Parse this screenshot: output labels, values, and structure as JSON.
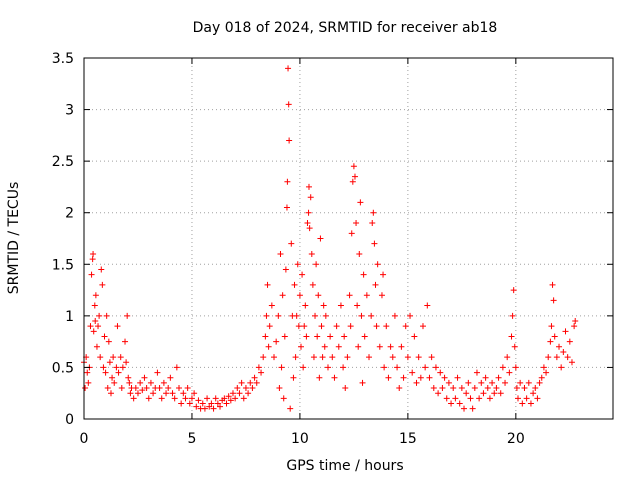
{
  "chart_data": {
    "type": "scatter",
    "title": "Day 018 of 2024, SRMTID for receiver ab18",
    "xlabel": "GPS time / hours",
    "ylabel": "SRMTID / TECUs",
    "xlim": [
      0,
      24.5
    ],
    "ylim": [
      0,
      3.5
    ],
    "xticks": [
      0,
      5,
      10,
      15,
      20
    ],
    "xtick_labels": [
      "0",
      "5",
      "10",
      "15",
      "20"
    ],
    "yticks": [
      0,
      0.5,
      1,
      1.5,
      2,
      2.5,
      3,
      3.5
    ],
    "ytick_labels": [
      "0",
      "0.5",
      "1",
      "1.5",
      "2",
      "2.5",
      "3",
      "3.5"
    ],
    "grid": true,
    "marker": "+",
    "color": "#ff0000",
    "series": [
      {
        "name": "SRMTID",
        "points": [
          [
            0.0,
            0.55
          ],
          [
            0.05,
            0.3
          ],
          [
            0.1,
            0.6
          ],
          [
            0.15,
            0.45
          ],
          [
            0.2,
            0.35
          ],
          [
            0.25,
            0.5
          ],
          [
            0.3,
            0.9
          ],
          [
            0.35,
            1.4
          ],
          [
            0.4,
            1.55
          ],
          [
            0.42,
            1.6
          ],
          [
            0.45,
            0.85
          ],
          [
            0.5,
            1.1
          ],
          [
            0.52,
            0.95
          ],
          [
            0.55,
            1.2
          ],
          [
            0.6,
            0.7
          ],
          [
            0.65,
            0.9
          ],
          [
            0.7,
            1.0
          ],
          [
            0.75,
            0.6
          ],
          [
            0.8,
            1.45
          ],
          [
            0.85,
            1.3
          ],
          [
            0.9,
            0.5
          ],
          [
            0.95,
            0.8
          ],
          [
            1.0,
            0.45
          ],
          [
            1.05,
            1.0
          ],
          [
            1.1,
            0.3
          ],
          [
            1.15,
            0.75
          ],
          [
            1.2,
            0.55
          ],
          [
            1.25,
            0.25
          ],
          [
            1.3,
            0.4
          ],
          [
            1.35,
            0.6
          ],
          [
            1.4,
            0.35
          ],
          [
            1.5,
            0.5
          ],
          [
            1.55,
            0.9
          ],
          [
            1.6,
            0.45
          ],
          [
            1.7,
            0.6
          ],
          [
            1.75,
            0.3
          ],
          [
            1.8,
            0.5
          ],
          [
            1.9,
            0.75
          ],
          [
            1.95,
            0.55
          ],
          [
            2.0,
            1.0
          ],
          [
            2.05,
            0.4
          ],
          [
            2.1,
            0.35
          ],
          [
            2.15,
            0.25
          ],
          [
            2.2,
            0.3
          ],
          [
            2.3,
            0.2
          ],
          [
            2.4,
            0.3
          ],
          [
            2.5,
            0.25
          ],
          [
            2.6,
            0.35
          ],
          [
            2.7,
            0.28
          ],
          [
            2.8,
            0.4
          ],
          [
            2.9,
            0.3
          ],
          [
            3.0,
            0.2
          ],
          [
            3.1,
            0.35
          ],
          [
            3.2,
            0.25
          ],
          [
            3.3,
            0.3
          ],
          [
            3.4,
            0.45
          ],
          [
            3.5,
            0.3
          ],
          [
            3.6,
            0.2
          ],
          [
            3.7,
            0.35
          ],
          [
            3.8,
            0.25
          ],
          [
            3.9,
            0.3
          ],
          [
            4.0,
            0.4
          ],
          [
            4.1,
            0.25
          ],
          [
            4.2,
            0.2
          ],
          [
            4.3,
            0.5
          ],
          [
            4.4,
            0.3
          ],
          [
            4.5,
            0.15
          ],
          [
            4.6,
            0.25
          ],
          [
            4.7,
            0.2
          ],
          [
            4.8,
            0.3
          ],
          [
            4.9,
            0.15
          ],
          [
            5.0,
            0.2
          ],
          [
            5.1,
            0.25
          ],
          [
            5.2,
            0.12
          ],
          [
            5.3,
            0.18
          ],
          [
            5.4,
            0.1
          ],
          [
            5.5,
            0.15
          ],
          [
            5.6,
            0.1
          ],
          [
            5.7,
            0.2
          ],
          [
            5.8,
            0.12
          ],
          [
            5.9,
            0.15
          ],
          [
            6.0,
            0.1
          ],
          [
            6.1,
            0.2
          ],
          [
            6.2,
            0.15
          ],
          [
            6.3,
            0.12
          ],
          [
            6.4,
            0.18
          ],
          [
            6.5,
            0.2
          ],
          [
            6.6,
            0.15
          ],
          [
            6.7,
            0.22
          ],
          [
            6.8,
            0.18
          ],
          [
            6.9,
            0.25
          ],
          [
            7.0,
            0.2
          ],
          [
            7.1,
            0.3
          ],
          [
            7.2,
            0.25
          ],
          [
            7.3,
            0.35
          ],
          [
            7.4,
            0.2
          ],
          [
            7.5,
            0.3
          ],
          [
            7.6,
            0.25
          ],
          [
            7.7,
            0.35
          ],
          [
            7.8,
            0.3
          ],
          [
            7.9,
            0.4
          ],
          [
            8.0,
            0.35
          ],
          [
            8.1,
            0.5
          ],
          [
            8.2,
            0.45
          ],
          [
            8.3,
            0.6
          ],
          [
            8.4,
            0.8
          ],
          [
            8.45,
            1.0
          ],
          [
            8.5,
            1.3
          ],
          [
            8.55,
            0.7
          ],
          [
            8.6,
            0.9
          ],
          [
            8.7,
            1.1
          ],
          [
            8.8,
            0.6
          ],
          [
            8.9,
            0.75
          ],
          [
            9.0,
            1.0
          ],
          [
            9.05,
            0.3
          ],
          [
            9.1,
            1.6
          ],
          [
            9.15,
            0.5
          ],
          [
            9.2,
            1.2
          ],
          [
            9.25,
            0.2
          ],
          [
            9.3,
            0.8
          ],
          [
            9.35,
            1.45
          ],
          [
            9.4,
            2.05
          ],
          [
            9.42,
            2.3
          ],
          [
            9.45,
            3.4
          ],
          [
            9.48,
            3.05
          ],
          [
            9.5,
            2.7
          ],
          [
            9.55,
            0.1
          ],
          [
            9.6,
            1.7
          ],
          [
            9.65,
            1.0
          ],
          [
            9.7,
            0.4
          ],
          [
            9.75,
            1.3
          ],
          [
            9.8,
            0.6
          ],
          [
            9.85,
            1.0
          ],
          [
            9.9,
            1.5
          ],
          [
            9.95,
            0.9
          ],
          [
            10.0,
            1.2
          ],
          [
            10.05,
            0.7
          ],
          [
            10.1,
            1.4
          ],
          [
            10.15,
            0.5
          ],
          [
            10.2,
            0.9
          ],
          [
            10.25,
            1.1
          ],
          [
            10.3,
            0.8
          ],
          [
            10.35,
            1.9
          ],
          [
            10.4,
            2.0
          ],
          [
            10.42,
            2.25
          ],
          [
            10.45,
            1.85
          ],
          [
            10.5,
            2.15
          ],
          [
            10.55,
            1.6
          ],
          [
            10.6,
            1.3
          ],
          [
            10.65,
            0.6
          ],
          [
            10.7,
            1.0
          ],
          [
            10.75,
            1.5
          ],
          [
            10.8,
            0.8
          ],
          [
            10.85,
            1.2
          ],
          [
            10.9,
            0.4
          ],
          [
            10.95,
            1.75
          ],
          [
            11.0,
            0.9
          ],
          [
            11.05,
            0.6
          ],
          [
            11.1,
            1.1
          ],
          [
            11.15,
            0.7
          ],
          [
            11.2,
            1.0
          ],
          [
            11.3,
            0.5
          ],
          [
            11.4,
            0.8
          ],
          [
            11.5,
            0.6
          ],
          [
            11.6,
            0.4
          ],
          [
            11.7,
            0.9
          ],
          [
            11.8,
            0.7
          ],
          [
            11.9,
            1.1
          ],
          [
            12.0,
            0.5
          ],
          [
            12.05,
            0.8
          ],
          [
            12.1,
            0.3
          ],
          [
            12.2,
            0.6
          ],
          [
            12.3,
            1.2
          ],
          [
            12.35,
            0.9
          ],
          [
            12.4,
            1.8
          ],
          [
            12.45,
            2.3
          ],
          [
            12.5,
            2.45
          ],
          [
            12.55,
            2.35
          ],
          [
            12.6,
            1.9
          ],
          [
            12.65,
            1.1
          ],
          [
            12.7,
            0.7
          ],
          [
            12.75,
            1.6
          ],
          [
            12.8,
            2.1
          ],
          [
            12.85,
            1.0
          ],
          [
            12.9,
            0.35
          ],
          [
            12.95,
            1.4
          ],
          [
            13.0,
            0.8
          ],
          [
            13.1,
            1.2
          ],
          [
            13.2,
            0.6
          ],
          [
            13.3,
            1.0
          ],
          [
            13.35,
            1.9
          ],
          [
            13.4,
            2.0
          ],
          [
            13.45,
            1.7
          ],
          [
            13.5,
            1.3
          ],
          [
            13.55,
            0.9
          ],
          [
            13.6,
            1.5
          ],
          [
            13.7,
            0.7
          ],
          [
            13.8,
            1.2
          ],
          [
            13.85,
            1.4
          ],
          [
            13.9,
            0.5
          ],
          [
            14.0,
            0.9
          ],
          [
            14.1,
            0.4
          ],
          [
            14.2,
            0.7
          ],
          [
            14.3,
            0.6
          ],
          [
            14.4,
            1.0
          ],
          [
            14.5,
            0.5
          ],
          [
            14.6,
            0.3
          ],
          [
            14.7,
            0.7
          ],
          [
            14.8,
            0.4
          ],
          [
            14.9,
            0.9
          ],
          [
            15.0,
            0.6
          ],
          [
            15.1,
            1.0
          ],
          [
            15.2,
            0.45
          ],
          [
            15.3,
            0.8
          ],
          [
            15.4,
            0.35
          ],
          [
            15.5,
            0.6
          ],
          [
            15.6,
            0.4
          ],
          [
            15.7,
            0.9
          ],
          [
            15.8,
            0.5
          ],
          [
            15.9,
            1.1
          ],
          [
            16.0,
            0.4
          ],
          [
            16.1,
            0.6
          ],
          [
            16.2,
            0.3
          ],
          [
            16.3,
            0.5
          ],
          [
            16.4,
            0.25
          ],
          [
            16.5,
            0.45
          ],
          [
            16.6,
            0.3
          ],
          [
            16.7,
            0.4
          ],
          [
            16.8,
            0.2
          ],
          [
            16.9,
            0.35
          ],
          [
            17.0,
            0.15
          ],
          [
            17.1,
            0.3
          ],
          [
            17.2,
            0.2
          ],
          [
            17.3,
            0.4
          ],
          [
            17.4,
            0.15
          ],
          [
            17.5,
            0.3
          ],
          [
            17.6,
            0.1
          ],
          [
            17.7,
            0.25
          ],
          [
            17.8,
            0.35
          ],
          [
            17.9,
            0.2
          ],
          [
            18.0,
            0.1
          ],
          [
            18.1,
            0.3
          ],
          [
            18.2,
            0.45
          ],
          [
            18.3,
            0.2
          ],
          [
            18.4,
            0.35
          ],
          [
            18.5,
            0.25
          ],
          [
            18.6,
            0.4
          ],
          [
            18.7,
            0.3
          ],
          [
            18.8,
            0.2
          ],
          [
            18.9,
            0.35
          ],
          [
            19.0,
            0.25
          ],
          [
            19.1,
            0.3
          ],
          [
            19.2,
            0.4
          ],
          [
            19.3,
            0.25
          ],
          [
            19.4,
            0.5
          ],
          [
            19.5,
            0.35
          ],
          [
            19.6,
            0.6
          ],
          [
            19.7,
            0.45
          ],
          [
            19.8,
            0.8
          ],
          [
            19.85,
            1.0
          ],
          [
            19.9,
            1.25
          ],
          [
            19.95,
            0.7
          ],
          [
            20.0,
            0.5
          ],
          [
            20.05,
            0.3
          ],
          [
            20.1,
            0.2
          ],
          [
            20.2,
            0.35
          ],
          [
            20.3,
            0.15
          ],
          [
            20.4,
            0.3
          ],
          [
            20.5,
            0.2
          ],
          [
            20.6,
            0.35
          ],
          [
            20.7,
            0.15
          ],
          [
            20.8,
            0.25
          ],
          [
            20.9,
            0.3
          ],
          [
            21.0,
            0.2
          ],
          [
            21.1,
            0.35
          ],
          [
            21.2,
            0.4
          ],
          [
            21.3,
            0.5
          ],
          [
            21.4,
            0.45
          ],
          [
            21.5,
            0.6
          ],
          [
            21.6,
            0.75
          ],
          [
            21.65,
            0.9
          ],
          [
            21.7,
            1.3
          ],
          [
            21.75,
            1.15
          ],
          [
            21.8,
            0.8
          ],
          [
            21.9,
            0.6
          ],
          [
            22.0,
            0.7
          ],
          [
            22.1,
            0.5
          ],
          [
            22.2,
            0.65
          ],
          [
            22.3,
            0.85
          ],
          [
            22.4,
            0.6
          ],
          [
            22.5,
            0.75
          ],
          [
            22.6,
            0.55
          ],
          [
            22.7,
            0.9
          ],
          [
            22.75,
            0.95
          ]
        ]
      }
    ]
  }
}
